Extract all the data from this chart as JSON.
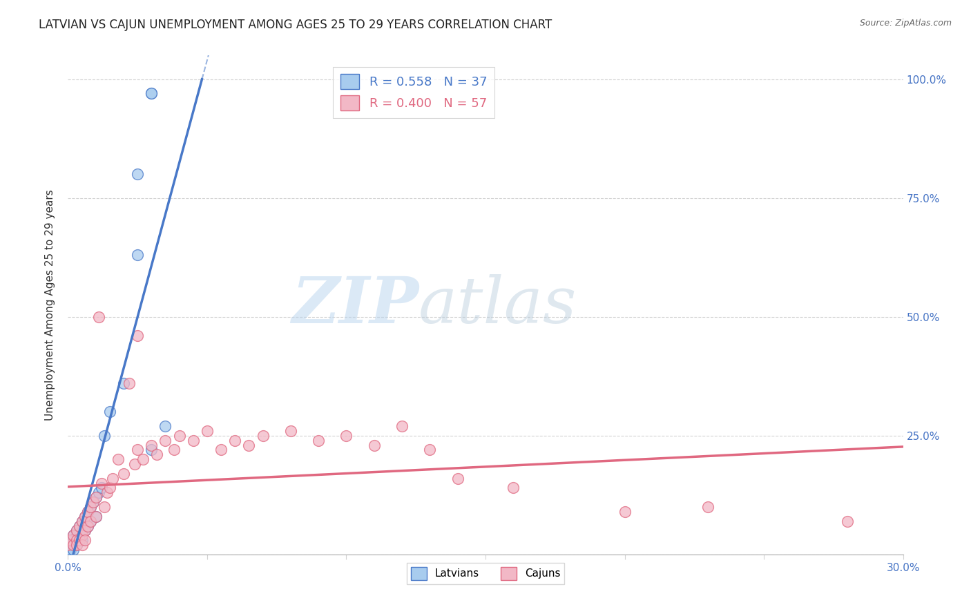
{
  "title": "LATVIAN VS CAJUN UNEMPLOYMENT AMONG AGES 25 TO 29 YEARS CORRELATION CHART",
  "source": "Source: ZipAtlas.com",
  "ylabel": "Unemployment Among Ages 25 to 29 years",
  "xlim": [
    0.0,
    0.3
  ],
  "ylim": [
    0.0,
    1.05
  ],
  "latvian_color": "#A8CCEE",
  "cajun_color": "#F2B8C6",
  "latvian_line_color": "#4878C8",
  "cajun_line_color": "#E06880",
  "latvian_R": 0.558,
  "latvian_N": 37,
  "cajun_R": 0.4,
  "cajun_N": 57,
  "watermark_zip": "ZIP",
  "watermark_atlas": "atlas",
  "latvian_x": [
    0.0,
    0.001,
    0.001,
    0.001,
    0.002,
    0.002,
    0.002,
    0.002,
    0.003,
    0.003,
    0.003,
    0.004,
    0.004,
    0.004,
    0.005,
    0.005,
    0.005,
    0.006,
    0.006,
    0.007,
    0.007,
    0.008,
    0.008,
    0.009,
    0.01,
    0.01,
    0.011,
    0.012,
    0.013,
    0.015,
    0.02,
    0.025,
    0.03,
    0.035,
    0.025,
    0.03,
    0.03
  ],
  "latvian_y": [
    0.01,
    0.02,
    0.03,
    0.01,
    0.04,
    0.03,
    0.02,
    0.01,
    0.05,
    0.04,
    0.02,
    0.06,
    0.04,
    0.03,
    0.07,
    0.05,
    0.03,
    0.08,
    0.05,
    0.09,
    0.06,
    0.1,
    0.07,
    0.11,
    0.12,
    0.08,
    0.13,
    0.14,
    0.25,
    0.3,
    0.36,
    0.63,
    0.22,
    0.27,
    0.8,
    0.97,
    0.97
  ],
  "cajun_x": [
    0.0,
    0.001,
    0.002,
    0.002,
    0.003,
    0.003,
    0.003,
    0.004,
    0.004,
    0.005,
    0.005,
    0.005,
    0.006,
    0.006,
    0.006,
    0.007,
    0.007,
    0.008,
    0.008,
    0.009,
    0.01,
    0.01,
    0.011,
    0.012,
    0.013,
    0.014,
    0.015,
    0.016,
    0.018,
    0.02,
    0.022,
    0.024,
    0.025,
    0.027,
    0.03,
    0.032,
    0.035,
    0.038,
    0.04,
    0.045,
    0.05,
    0.055,
    0.06,
    0.065,
    0.07,
    0.08,
    0.09,
    0.1,
    0.11,
    0.12,
    0.13,
    0.14,
    0.16,
    0.2,
    0.025,
    0.23,
    0.28
  ],
  "cajun_y": [
    0.02,
    0.03,
    0.04,
    0.02,
    0.05,
    0.03,
    0.02,
    0.06,
    0.03,
    0.07,
    0.04,
    0.02,
    0.08,
    0.05,
    0.03,
    0.09,
    0.06,
    0.1,
    0.07,
    0.11,
    0.12,
    0.08,
    0.5,
    0.15,
    0.1,
    0.13,
    0.14,
    0.16,
    0.2,
    0.17,
    0.36,
    0.19,
    0.22,
    0.2,
    0.23,
    0.21,
    0.24,
    0.22,
    0.25,
    0.24,
    0.26,
    0.22,
    0.24,
    0.23,
    0.25,
    0.26,
    0.24,
    0.25,
    0.23,
    0.27,
    0.22,
    0.16,
    0.14,
    0.09,
    0.46,
    0.1,
    0.07
  ]
}
